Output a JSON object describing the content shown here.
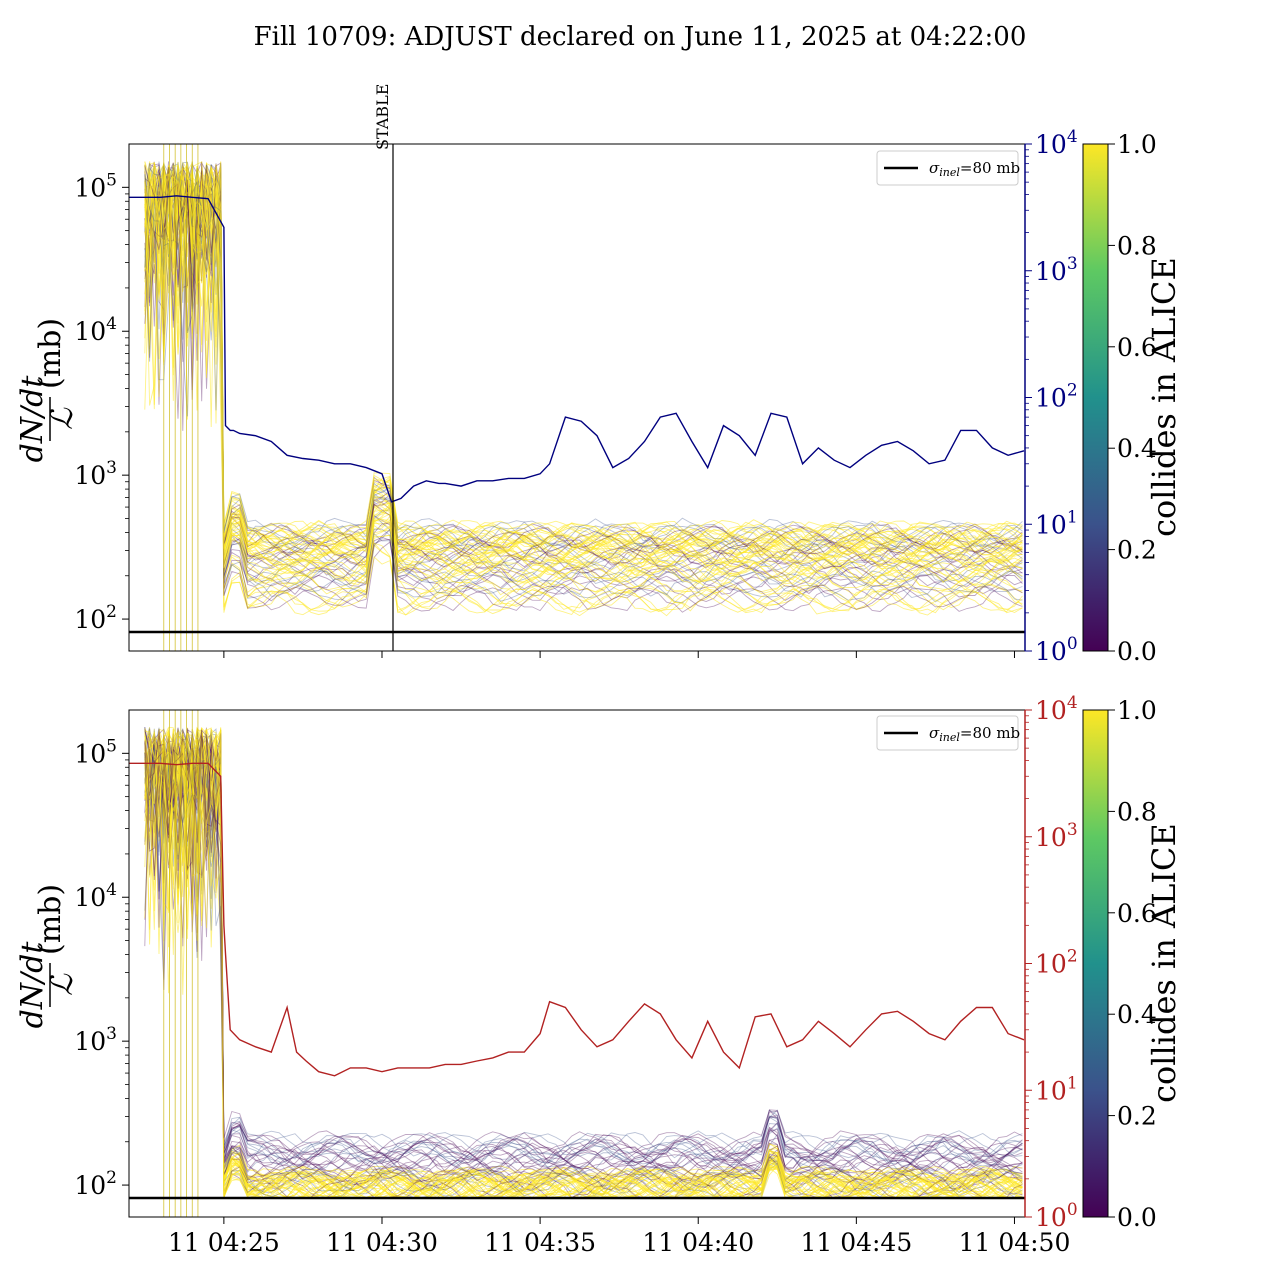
{
  "title": "Fill 10709: ADJUST declared on June 11, 2025 at 04:22:00",
  "colors": {
    "top_right_axis": "#00007f",
    "bottom_right_axis": "#b22222",
    "sigma_line": "#000000",
    "viridis": [
      "#440154",
      "#3b528b",
      "#21918c",
      "#5ec962",
      "#fde725"
    ]
  },
  "colorbar": {
    "label": "collides in ALICE",
    "ticks": [
      "0.0",
      "0.2",
      "0.4",
      "0.6",
      "0.8",
      "1.0"
    ]
  },
  "chart_data": [
    {
      "type": "line",
      "panel": "top",
      "ylabel_num": "dN/dt",
      "ylabel_den": "ℒ",
      "ylabel_unit": "(mb)",
      "y_scale": "log",
      "ylim": [
        60,
        200000
      ],
      "y_ticks": [
        "10^2",
        "10^3",
        "10^4",
        "10^5"
      ],
      "y2_scale": "log",
      "y2lim": [
        1,
        10000
      ],
      "y2_ticks": [
        "10^0",
        "10^1",
        "10^2",
        "10^3",
        "10^4"
      ],
      "xlim": [
        "04:22:00",
        "04:50:20"
      ],
      "x_ticks": [
        "11 04:25",
        "11 04:30",
        "11 04:35",
        "11 04:40",
        "11 04:45",
        "11 04:50"
      ],
      "x_tick_labels_shown": false,
      "legend": {
        "entry": "σinel=80 mb",
        "sigma_symbol": "σ",
        "sigma_sub": "inel",
        "sigma_value": "=80 mb",
        "placement": "top-right"
      },
      "vertical_marker": {
        "label": "STABLE",
        "time": "04:30:20"
      },
      "sigma_inel_mb": 80,
      "right_axis_series": {
        "x_min": [
          0,
          1,
          1.5,
          2,
          2.5,
          3,
          3.05,
          3.2,
          3.3,
          3.5,
          4,
          4.5,
          5,
          5.5,
          6,
          6.5,
          7,
          7.5,
          8,
          8.3,
          8.6,
          9,
          9.4,
          9.8,
          10,
          10.5,
          11,
          11.5,
          12,
          12.5,
          13,
          13.3,
          13.8,
          14.3,
          14.8,
          15.3,
          15.8,
          16.3,
          16.8,
          17.3,
          17.8,
          18.3,
          18.8,
          19.3,
          19.8,
          20.3,
          20.8,
          21.3,
          21.8,
          22.3,
          22.8,
          23.3,
          23.8,
          24.3,
          24.8,
          25.3,
          25.8,
          26.3,
          26.8,
          27.3,
          27.8,
          28.3
        ],
        "y_rate": [
          3800,
          3800,
          3900,
          3800,
          3700,
          2200,
          60,
          55,
          55,
          52,
          50,
          45,
          35,
          33,
          32,
          30,
          30,
          28,
          25,
          15,
          16,
          20,
          22,
          21,
          21,
          20,
          22,
          22,
          23,
          23,
          25,
          30,
          70,
          65,
          50,
          28,
          33,
          45,
          70,
          75,
          45,
          28,
          60,
          50,
          35,
          75,
          70,
          30,
          40,
          32,
          28,
          35,
          42,
          45,
          38,
          30,
          32,
          55,
          55,
          40,
          35,
          38
        ]
      }
    },
    {
      "type": "line",
      "panel": "bottom",
      "ylabel_num": "dN/dt",
      "ylabel_den": "ℒ",
      "ylabel_unit": "(mb)",
      "y_scale": "log",
      "ylim": [
        60,
        200000
      ],
      "y_ticks": [
        "10^2",
        "10^3",
        "10^4",
        "10^5"
      ],
      "y2_scale": "log",
      "y2lim": [
        1,
        10000
      ],
      "y2_ticks": [
        "10^0",
        "10^1",
        "10^2",
        "10^3",
        "10^4"
      ],
      "xlim": [
        "04:22:00",
        "04:50:20"
      ],
      "x_ticks": [
        "11 04:25",
        "11 04:30",
        "11 04:35",
        "11 04:40",
        "11 04:45",
        "11 04:50"
      ],
      "x_tick_labels_shown": true,
      "legend": {
        "entry": "σinel=80 mb",
        "sigma_symbol": "σ",
        "sigma_sub": "inel",
        "sigma_value": "=80 mb",
        "placement": "top-right"
      },
      "sigma_inel_mb": 80,
      "right_axis_series": {
        "x_min": [
          0,
          1,
          1.5,
          2,
          2.5,
          2.9,
          3.0,
          3.05,
          3.2,
          3.5,
          4,
          4.5,
          5,
          5.3,
          5.6,
          6,
          6.5,
          7,
          7.5,
          8,
          8.5,
          9,
          9.5,
          10,
          10.5,
          11,
          11.5,
          12,
          12.5,
          13,
          13.3,
          13.8,
          14.3,
          14.8,
          15.3,
          15.8,
          16.3,
          16.8,
          17.3,
          17.8,
          18.3,
          18.8,
          19.3,
          19.8,
          20.3,
          20.8,
          21.3,
          21.8,
          22.3,
          22.8,
          23.3,
          23.8,
          24.3,
          24.8,
          25.3,
          25.8,
          26.3,
          26.8,
          27.3,
          27.8,
          28.3
        ],
        "y_rate": [
          3800,
          3800,
          3700,
          3800,
          3800,
          3000,
          200,
          120,
          30,
          25,
          22,
          20,
          45,
          20,
          17,
          14,
          13,
          15,
          15,
          14,
          15,
          15,
          15,
          16,
          16,
          17,
          18,
          20,
          20,
          28,
          50,
          45,
          30,
          22,
          25,
          35,
          48,
          40,
          25,
          18,
          35,
          20,
          15,
          38,
          40,
          22,
          25,
          35,
          28,
          22,
          30,
          40,
          42,
          35,
          28,
          25,
          35,
          45,
          45,
          28,
          25
        ]
      }
    }
  ]
}
